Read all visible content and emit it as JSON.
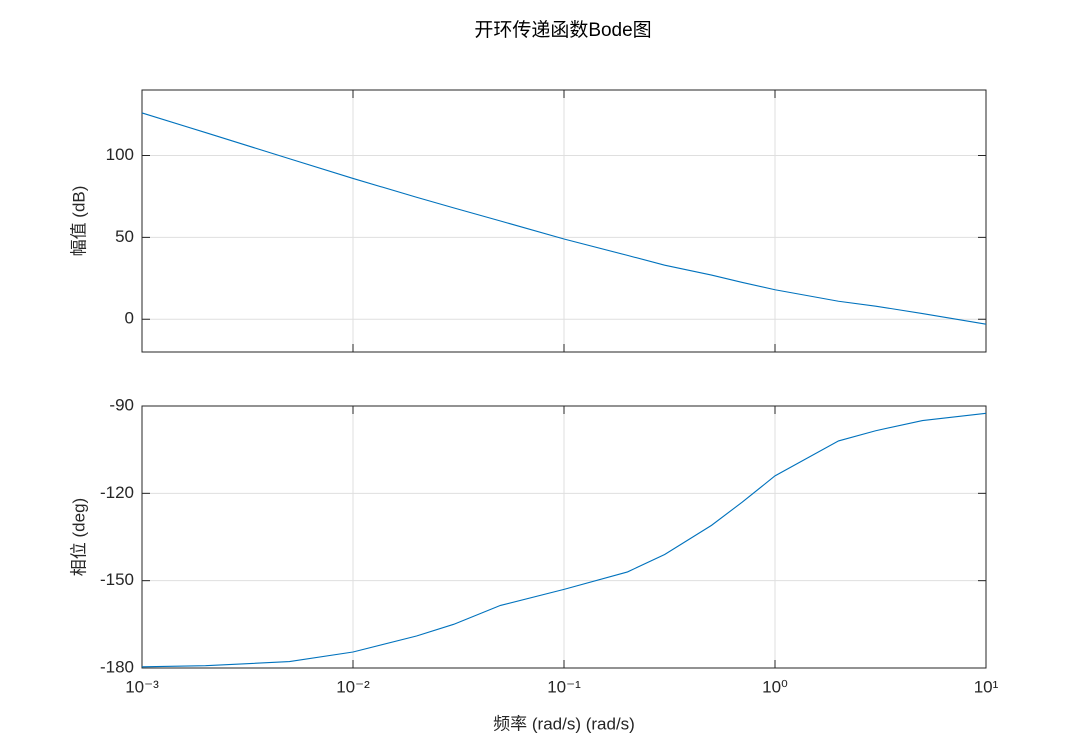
{
  "title": "开环传递函数Bode图",
  "chart_data": [
    {
      "type": "line",
      "ylabel": "幅值 (dB)",
      "log_x": true,
      "grid": true,
      "color": "#0072bd",
      "x": [
        0.001,
        0.002,
        0.005,
        0.01,
        0.02,
        0.03,
        0.05,
        0.1,
        0.2,
        0.3,
        0.5,
        0.7,
        1,
        2,
        3,
        5,
        10
      ],
      "values": [
        126,
        114,
        98,
        86,
        74.5,
        68,
        60,
        49,
        39,
        33,
        27,
        22.5,
        18,
        11,
        8,
        3.5,
        -3
      ],
      "xlim": [
        0.001,
        10
      ],
      "xticks": [
        0.001,
        0.01,
        0.1,
        1,
        10
      ],
      "ylim": [
        -20,
        140
      ],
      "yticks": [
        0,
        50,
        100
      ]
    },
    {
      "type": "line",
      "ylabel": "相位 (deg)",
      "xlabel": "频率 (rad/s) (rad/s)",
      "log_x": true,
      "grid": true,
      "color": "#0072bd",
      "x": [
        0.001,
        0.002,
        0.005,
        0.01,
        0.02,
        0.03,
        0.05,
        0.1,
        0.2,
        0.3,
        0.5,
        0.7,
        1,
        2,
        3,
        5,
        10
      ],
      "values": [
        -179.6,
        -179.2,
        -177.8,
        -174.5,
        -169,
        -165,
        -158.5,
        -153,
        -147,
        -141,
        -131,
        -123,
        -114,
        -102,
        -98.5,
        -95,
        -92.5
      ],
      "xlim": [
        0.001,
        10
      ],
      "xticks": [
        {
          "value": 0.001,
          "label": "10⁻³"
        },
        {
          "value": 0.01,
          "label": "10⁻²"
        },
        {
          "value": 0.1,
          "label": "10⁻¹"
        },
        {
          "value": 1,
          "label": "10⁰"
        },
        {
          "value": 10,
          "label": "10¹"
        }
      ],
      "ylim": [
        -180,
        -90
      ],
      "yticks": [
        -180,
        -150,
        -120,
        -90
      ]
    }
  ]
}
